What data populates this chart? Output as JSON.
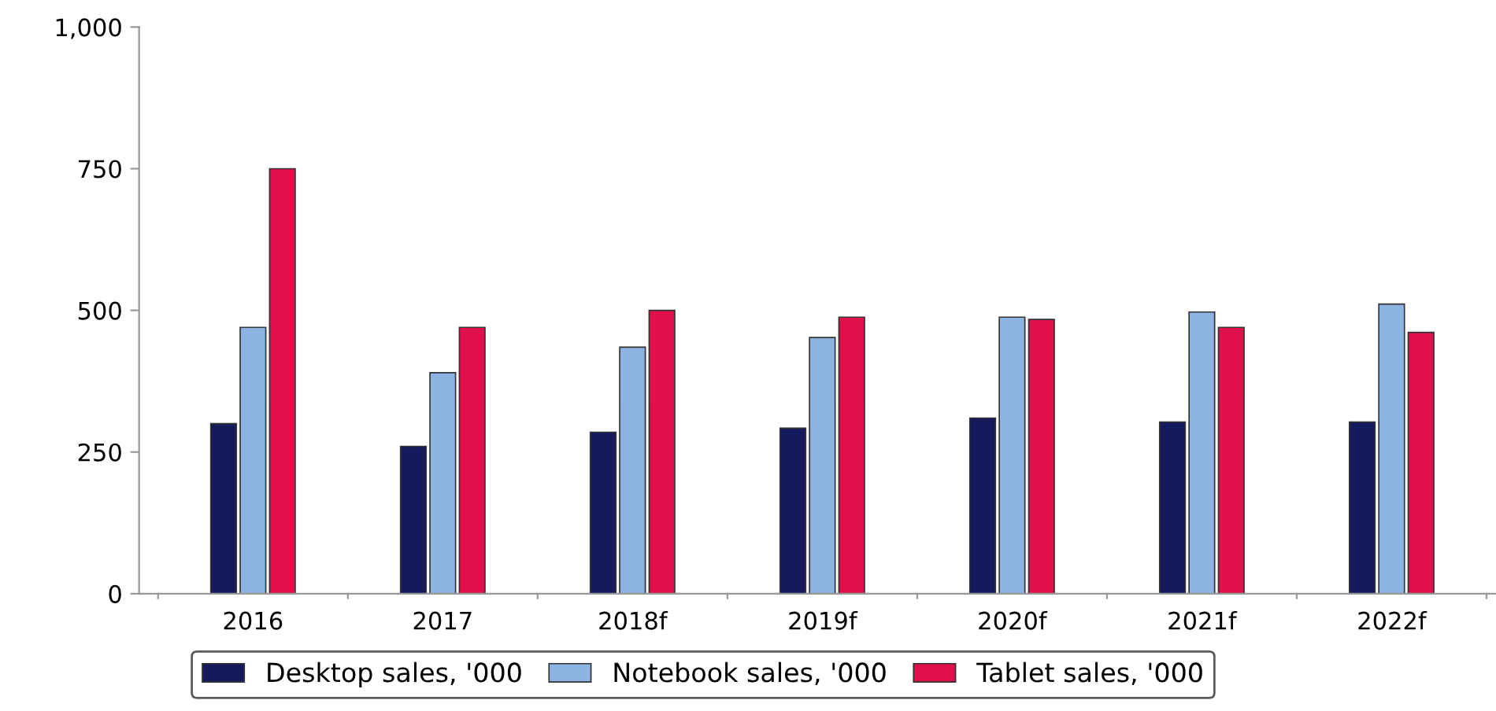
{
  "chart_data": {
    "type": "bar",
    "categories": [
      "2016",
      "2017",
      "2018f",
      "2019f",
      "2020f",
      "2021f",
      "2022f"
    ],
    "series": [
      {
        "name": "Desktop sales, '000",
        "color": "#141a5c",
        "values": [
          300,
          260,
          285,
          292,
          310,
          303,
          303
        ]
      },
      {
        "name": "Notebook sales, '000",
        "color": "#8db3e2",
        "values": [
          470,
          390,
          435,
          452,
          488,
          497,
          511
        ]
      },
      {
        "name": "Tablet sales, '000",
        "color": "#e0104a",
        "values": [
          750,
          470,
          500,
          488,
          484,
          470,
          461
        ]
      }
    ],
    "ylim": [
      0,
      1000
    ],
    "yticks": [
      0,
      250,
      500,
      750,
      {
        "value": 1000,
        "label": "1,000"
      }
    ],
    "grid": false,
    "legend": "bottom"
  }
}
